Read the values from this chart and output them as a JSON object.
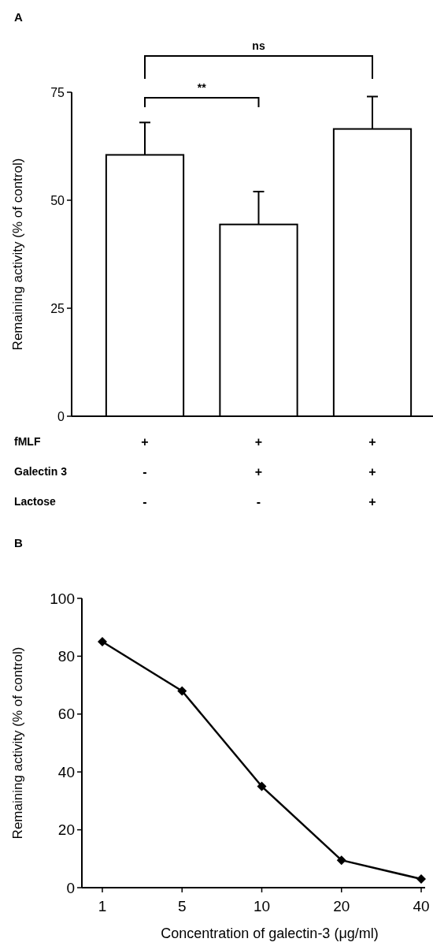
{
  "chart_data": [
    {
      "type": "bar",
      "title": "A",
      "ylabel": "Remaining activity (% of control)",
      "xlabel": "fMLF\nGalectin 3\nLactose",
      "categories": [
        "+\n-\n-",
        "+\n+\n-",
        "+\n+\n+"
      ],
      "values": [
        60.5,
        44.4,
        66.5
      ],
      "errors": [
        [
          60.5,
          68
        ],
        [
          44.4,
          52
        ],
        [
          66.5,
          74
        ]
      ],
      "color": "#ffffff",
      "ylim": [
        0,
        75
      ],
      "yticks": [
        0,
        25,
        50,
        75
      ],
      "grid": false,
      "annotations": [
        "**",
        "ns"
      ]
    },
    {
      "type": "line",
      "title": "B",
      "ylabel": "Remaining activity (% of control)",
      "xlabel": "Concentration of galectin-3 (μg/ml)",
      "categories": [
        "1",
        "5",
        "10",
        "20",
        "40"
      ],
      "values": [
        85,
        68,
        35,
        9.5,
        3
      ],
      "color": "#000000",
      "marker": "diamond",
      "line_style": "solid",
      "ylim": [
        0,
        100
      ],
      "yticks": [
        0,
        20,
        40,
        60,
        80,
        100
      ],
      "grid": false
    }
  ]
}
